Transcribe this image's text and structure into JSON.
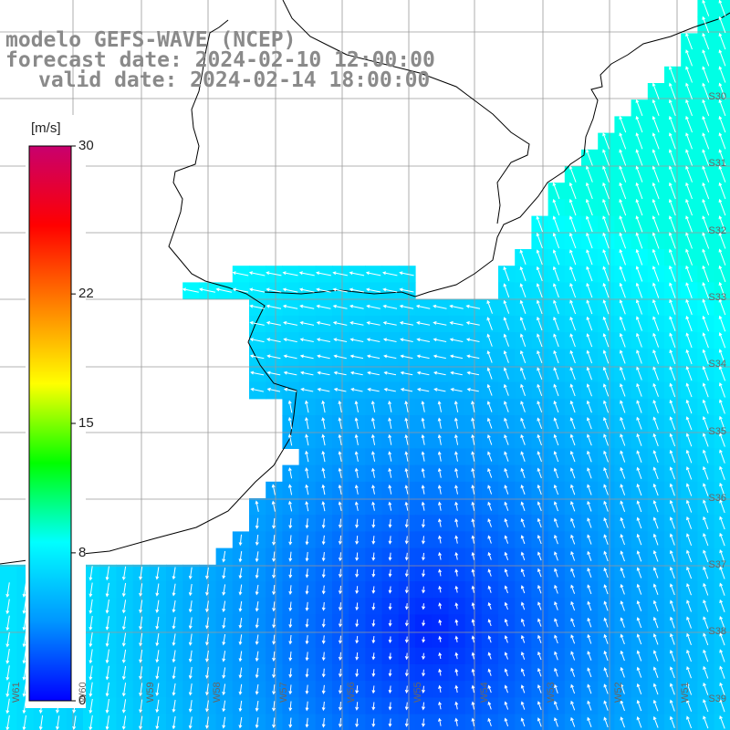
{
  "title": {
    "line1": "modelo GEFS-WAVE (NCEP)",
    "line2": "forecast date: 2024-02-10 12:00:00",
    "line3": "valid date: 2024-02-14 18:00:00"
  },
  "colorbar": {
    "unit": "[m/s]",
    "min": 0,
    "max": 30,
    "ticks": [
      "30",
      "22",
      "15",
      "8",
      "0"
    ],
    "tick_values": [
      30,
      22,
      15,
      8,
      0
    ],
    "colors": [
      "#0000ff",
      "#0096ff",
      "#00ffff",
      "#00ff00",
      "#ffff00",
      "#ff8000",
      "#ff0000",
      "#c8006e"
    ]
  },
  "axes": {
    "lon_labels": [
      "W61",
      "W60",
      "W59",
      "W58",
      "W57",
      "W56",
      "W55",
      "W54",
      "W53",
      "W52",
      "W51"
    ],
    "lat_labels": [
      "S30",
      "S31",
      "S32",
      "S33",
      "S34",
      "S35",
      "S36",
      "S37",
      "S38",
      "S39"
    ]
  },
  "colors": {
    "land": "#ffffff",
    "grid": "#9a9a9a",
    "coast": "#000000",
    "arrow": "#ffffff"
  },
  "field": {
    "variable": "wind speed",
    "unit": "m/s",
    "range_shown": [
      0,
      9
    ]
  }
}
